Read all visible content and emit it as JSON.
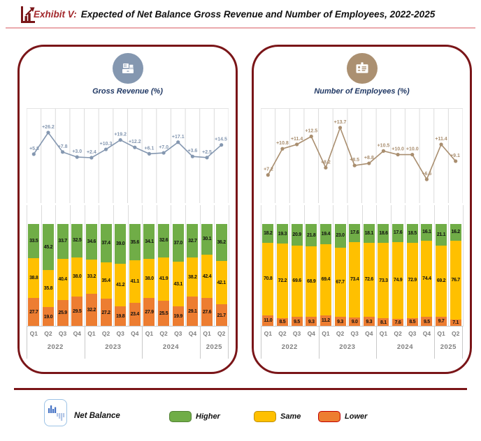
{
  "header": {
    "exhibit_label": "Exhibit V:",
    "title": "Expected of Net Balance Gross Revenue and Number of Employees, 2022-2025"
  },
  "colors": {
    "maroon_border": "#7A1518",
    "exhibit_red": "#A3282C",
    "underline_pink": "#EBA9AD",
    "higher_green": "#70AD47",
    "same_yellow": "#FFC000",
    "lower_orange": "#ED7D31",
    "revenue_accent": "#8497B0",
    "employees_accent": "#A98E6F",
    "axis_text_gray": "#7F7F7F"
  },
  "chart_data": [
    {
      "type": "bar",
      "subtype": "stacked-bar-with-net-balance-line",
      "title": "Gross Revenue (%)",
      "icon": "cash-register-icon",
      "icon_bg": "#8497B0",
      "line_color": "#8497B0",
      "ylim": [
        0,
        100
      ],
      "categories": [
        "Q1",
        "Q2",
        "Q3",
        "Q4",
        "Q1",
        "Q2",
        "Q3",
        "Q4",
        "Q1",
        "Q2",
        "Q3",
        "Q4",
        "Q1",
        "Q2"
      ],
      "years": [
        {
          "label": "2022",
          "count": 4
        },
        {
          "label": "2023",
          "count": 4
        },
        {
          "label": "2024",
          "count": 4
        },
        {
          "label": "2025",
          "count": 2
        }
      ],
      "net_balance_line": {
        "name": "Net Balance",
        "values": [
          5.8,
          26.2,
          7.8,
          3.0,
          2.4,
          10.3,
          19.2,
          12.2,
          6.1,
          7.0,
          17.1,
          3.6,
          2.5,
          14.5
        ]
      },
      "series": [
        {
          "name": "Higher",
          "color": "#70AD47",
          "values": [
            33.5,
            45.2,
            33.7,
            32.5,
            34.6,
            37.4,
            39.0,
            35.6,
            34.1,
            32.6,
            37.0,
            32.7,
            30.1,
            36.2
          ]
        },
        {
          "name": "Same",
          "color": "#FFC000",
          "values": [
            38.8,
            35.8,
            40.4,
            38.0,
            33.2,
            35.4,
            41.2,
            41.1,
            38.0,
            41.9,
            43.1,
            38.2,
            42.4,
            42.1
          ]
        },
        {
          "name": "Lower",
          "color": "#ED7D31",
          "values": [
            27.7,
            19.0,
            25.9,
            29.5,
            32.2,
            27.2,
            19.8,
            23.4,
            27.9,
            25.5,
            19.9,
            29.1,
            27.6,
            21.7
          ]
        }
      ]
    },
    {
      "type": "bar",
      "subtype": "stacked-bar-with-net-balance-line",
      "title": "Number of Employees (%)",
      "icon": "id-card-icon",
      "icon_bg": "#AB9071",
      "line_color": "#A98E6F",
      "ylim": [
        0,
        100
      ],
      "categories": [
        "Q1",
        "Q2",
        "Q3",
        "Q4",
        "Q1",
        "Q2",
        "Q3",
        "Q4",
        "Q1",
        "Q2",
        "Q3",
        "Q4",
        "Q1",
        "Q2"
      ],
      "years": [
        {
          "label": "2022",
          "count": 4
        },
        {
          "label": "2023",
          "count": 4
        },
        {
          "label": "2024",
          "count": 4
        },
        {
          "label": "2025",
          "count": 2
        }
      ],
      "net_balance_line": {
        "name": "Net Balance",
        "values": [
          7.2,
          10.8,
          11.4,
          12.5,
          8.2,
          13.7,
          8.5,
          8.8,
          10.5,
          10.0,
          10.0,
          6.6,
          11.4,
          9.1
        ]
      },
      "series": [
        {
          "name": "Higher",
          "color": "#70AD47",
          "values": [
            18.2,
            19.3,
            20.9,
            21.8,
            19.4,
            23.0,
            17.6,
            18.1,
            18.6,
            17.6,
            18.5,
            16.1,
            21.1,
            16.2
          ]
        },
        {
          "name": "Same",
          "color": "#FFC000",
          "values": [
            70.8,
            72.2,
            69.6,
            68.9,
            69.4,
            67.7,
            73.4,
            72.6,
            73.3,
            74.9,
            72.9,
            74.4,
            69.2,
            76.7
          ]
        },
        {
          "name": "Lower",
          "color": "#ED7D31",
          "values": [
            11.0,
            8.5,
            9.5,
            9.3,
            11.2,
            9.3,
            9.0,
            9.3,
            8.1,
            7.6,
            8.5,
            9.5,
            9.7,
            7.1
          ]
        }
      ]
    }
  ],
  "legend": {
    "net_balance_label": "Net Balance",
    "items": [
      {
        "label": "Higher",
        "color": "#70AD47",
        "border": "#538135"
      },
      {
        "label": "Same",
        "color": "#FFC000",
        "border": "#BF8F00"
      },
      {
        "label": "Lower",
        "color": "#ED7D31",
        "border": "#C00000"
      }
    ]
  }
}
